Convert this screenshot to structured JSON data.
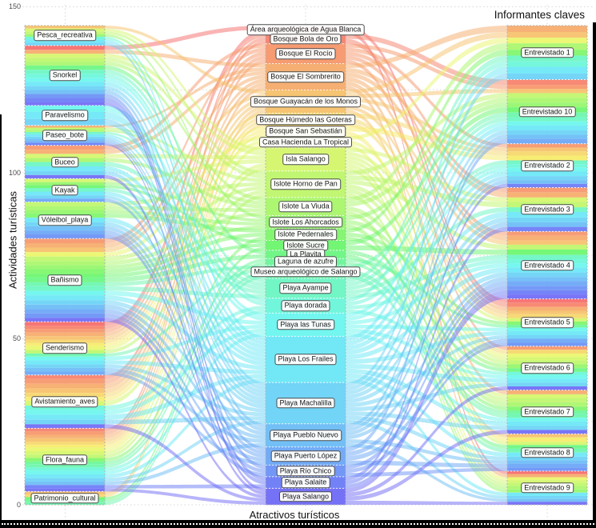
{
  "chart_data": {
    "type": "alluvial",
    "axis_titles": {
      "left": "Actividades turísticas",
      "bottom": "Atractivos turísticos",
      "top_right": "Informantes claves"
    },
    "y_ticks": [
      0,
      50,
      100,
      150
    ],
    "y_minor_ticks": [
      25,
      75,
      125
    ],
    "ylim": [
      0,
      150
    ],
    "grid": "dotted",
    "legend_position": "none",
    "axes": [
      {
        "id": "activities",
        "title": "Actividades turísticas",
        "nodes": [
          {
            "label": "Pesca_recreativa",
            "value": 6
          },
          {
            "label": "Snorkel",
            "value": 18
          },
          {
            "label": "Paravelismo",
            "value": 6
          },
          {
            "label": "Paseo_bote",
            "value": 6
          },
          {
            "label": "Buceo",
            "value": 10
          },
          {
            "label": "Kayak",
            "value": 7
          },
          {
            "label": "Vóleibol_playa",
            "value": 11
          },
          {
            "label": "Bañismo",
            "value": 25
          },
          {
            "label": "Senderismo",
            "value": 16
          },
          {
            "label": "Avistamiento_aves",
            "value": 16
          },
          {
            "label": "Flora_fauna",
            "value": 19
          },
          {
            "label": "Patrimonio_cultural",
            "value": 4
          }
        ]
      },
      {
        "id": "attractions",
        "title": "Atractivos turísticos",
        "nodes": [
          {
            "label": "Área arqueológica de Agua Blanca",
            "value": 2.5
          },
          {
            "label": "Bosque Bola de Oro",
            "value": 3
          },
          {
            "label": "Bosque El Rocío",
            "value": 6
          },
          {
            "label": "Bosque El Sombrerito",
            "value": 8
          },
          {
            "label": "Bosque Guayacán de los Monos",
            "value": 7
          },
          {
            "label": "Bosque Húmedo las Goteras",
            "value": 4
          },
          {
            "label": "Bosque San Sebastián",
            "value": 3
          },
          {
            "label": "Casa Hacienda La Tropical",
            "value": 3.5
          },
          {
            "label": "Isla Salango",
            "value": 7
          },
          {
            "label": "Islote Horno de Pan",
            "value": 8
          },
          {
            "label": "Islote La Viuda",
            "value": 5.5
          },
          {
            "label": "Islote Los Ahorcados",
            "value": 4
          },
          {
            "label": "Islote Pedernales",
            "value": 3.5
          },
          {
            "label": "Islote Sucre",
            "value": 3
          },
          {
            "label": "La Playita",
            "value": 2.5
          },
          {
            "label": "Laguna de azufre",
            "value": 2
          },
          {
            "label": "Museo arqueológico de Salango",
            "value": 4
          },
          {
            "label": "Playa Ayampe",
            "value": 6
          },
          {
            "label": "Playa dorada",
            "value": 4.5
          },
          {
            "label": "Playa las Tunas",
            "value": 7
          },
          {
            "label": "Playa Los Frailes",
            "value": 14
          },
          {
            "label": "Playa Machalilla",
            "value": 12.5
          },
          {
            "label": "Playa Pueblo Nuevo",
            "value": 7
          },
          {
            "label": "Playa Puerto López",
            "value": 5.5
          },
          {
            "label": "Playa Río Chico",
            "value": 3.5
          },
          {
            "label": "Playa Salaite",
            "value": 3.5
          },
          {
            "label": "Playa Salango",
            "value": 5
          }
        ]
      },
      {
        "id": "informants",
        "title": "Informantes claves",
        "nodes": [
          {
            "label": "Entrevistado 1",
            "value": 16
          },
          {
            "label": "Entrevistado 10",
            "value": 19
          },
          {
            "label": "Entrevistado 2",
            "value": 13
          },
          {
            "label": "Entrevistado 3",
            "value": 13
          },
          {
            "label": "Entrevistado 4",
            "value": 20
          },
          {
            "label": "Entrevistado 5",
            "value": 14
          },
          {
            "label": "Entrevistado 6",
            "value": 13
          },
          {
            "label": "Entrevistado 7",
            "value": 13
          },
          {
            "label": "Entrevistado 8",
            "value": 11
          },
          {
            "label": "Entrevistado 9",
            "value": 10
          }
        ]
      }
    ],
    "style": {
      "palette_hue_start": 0,
      "palette_hue_end": 242,
      "top_segment_color": "#F8837A",
      "bottom_segment_color": "#8290EC",
      "label_bg": "#FFFFFF",
      "label_border": "#4A4A4A",
      "grid_color": "#D7D7D7",
      "tick_color": "#4D4D4D",
      "frame_color": "#000000"
    }
  }
}
